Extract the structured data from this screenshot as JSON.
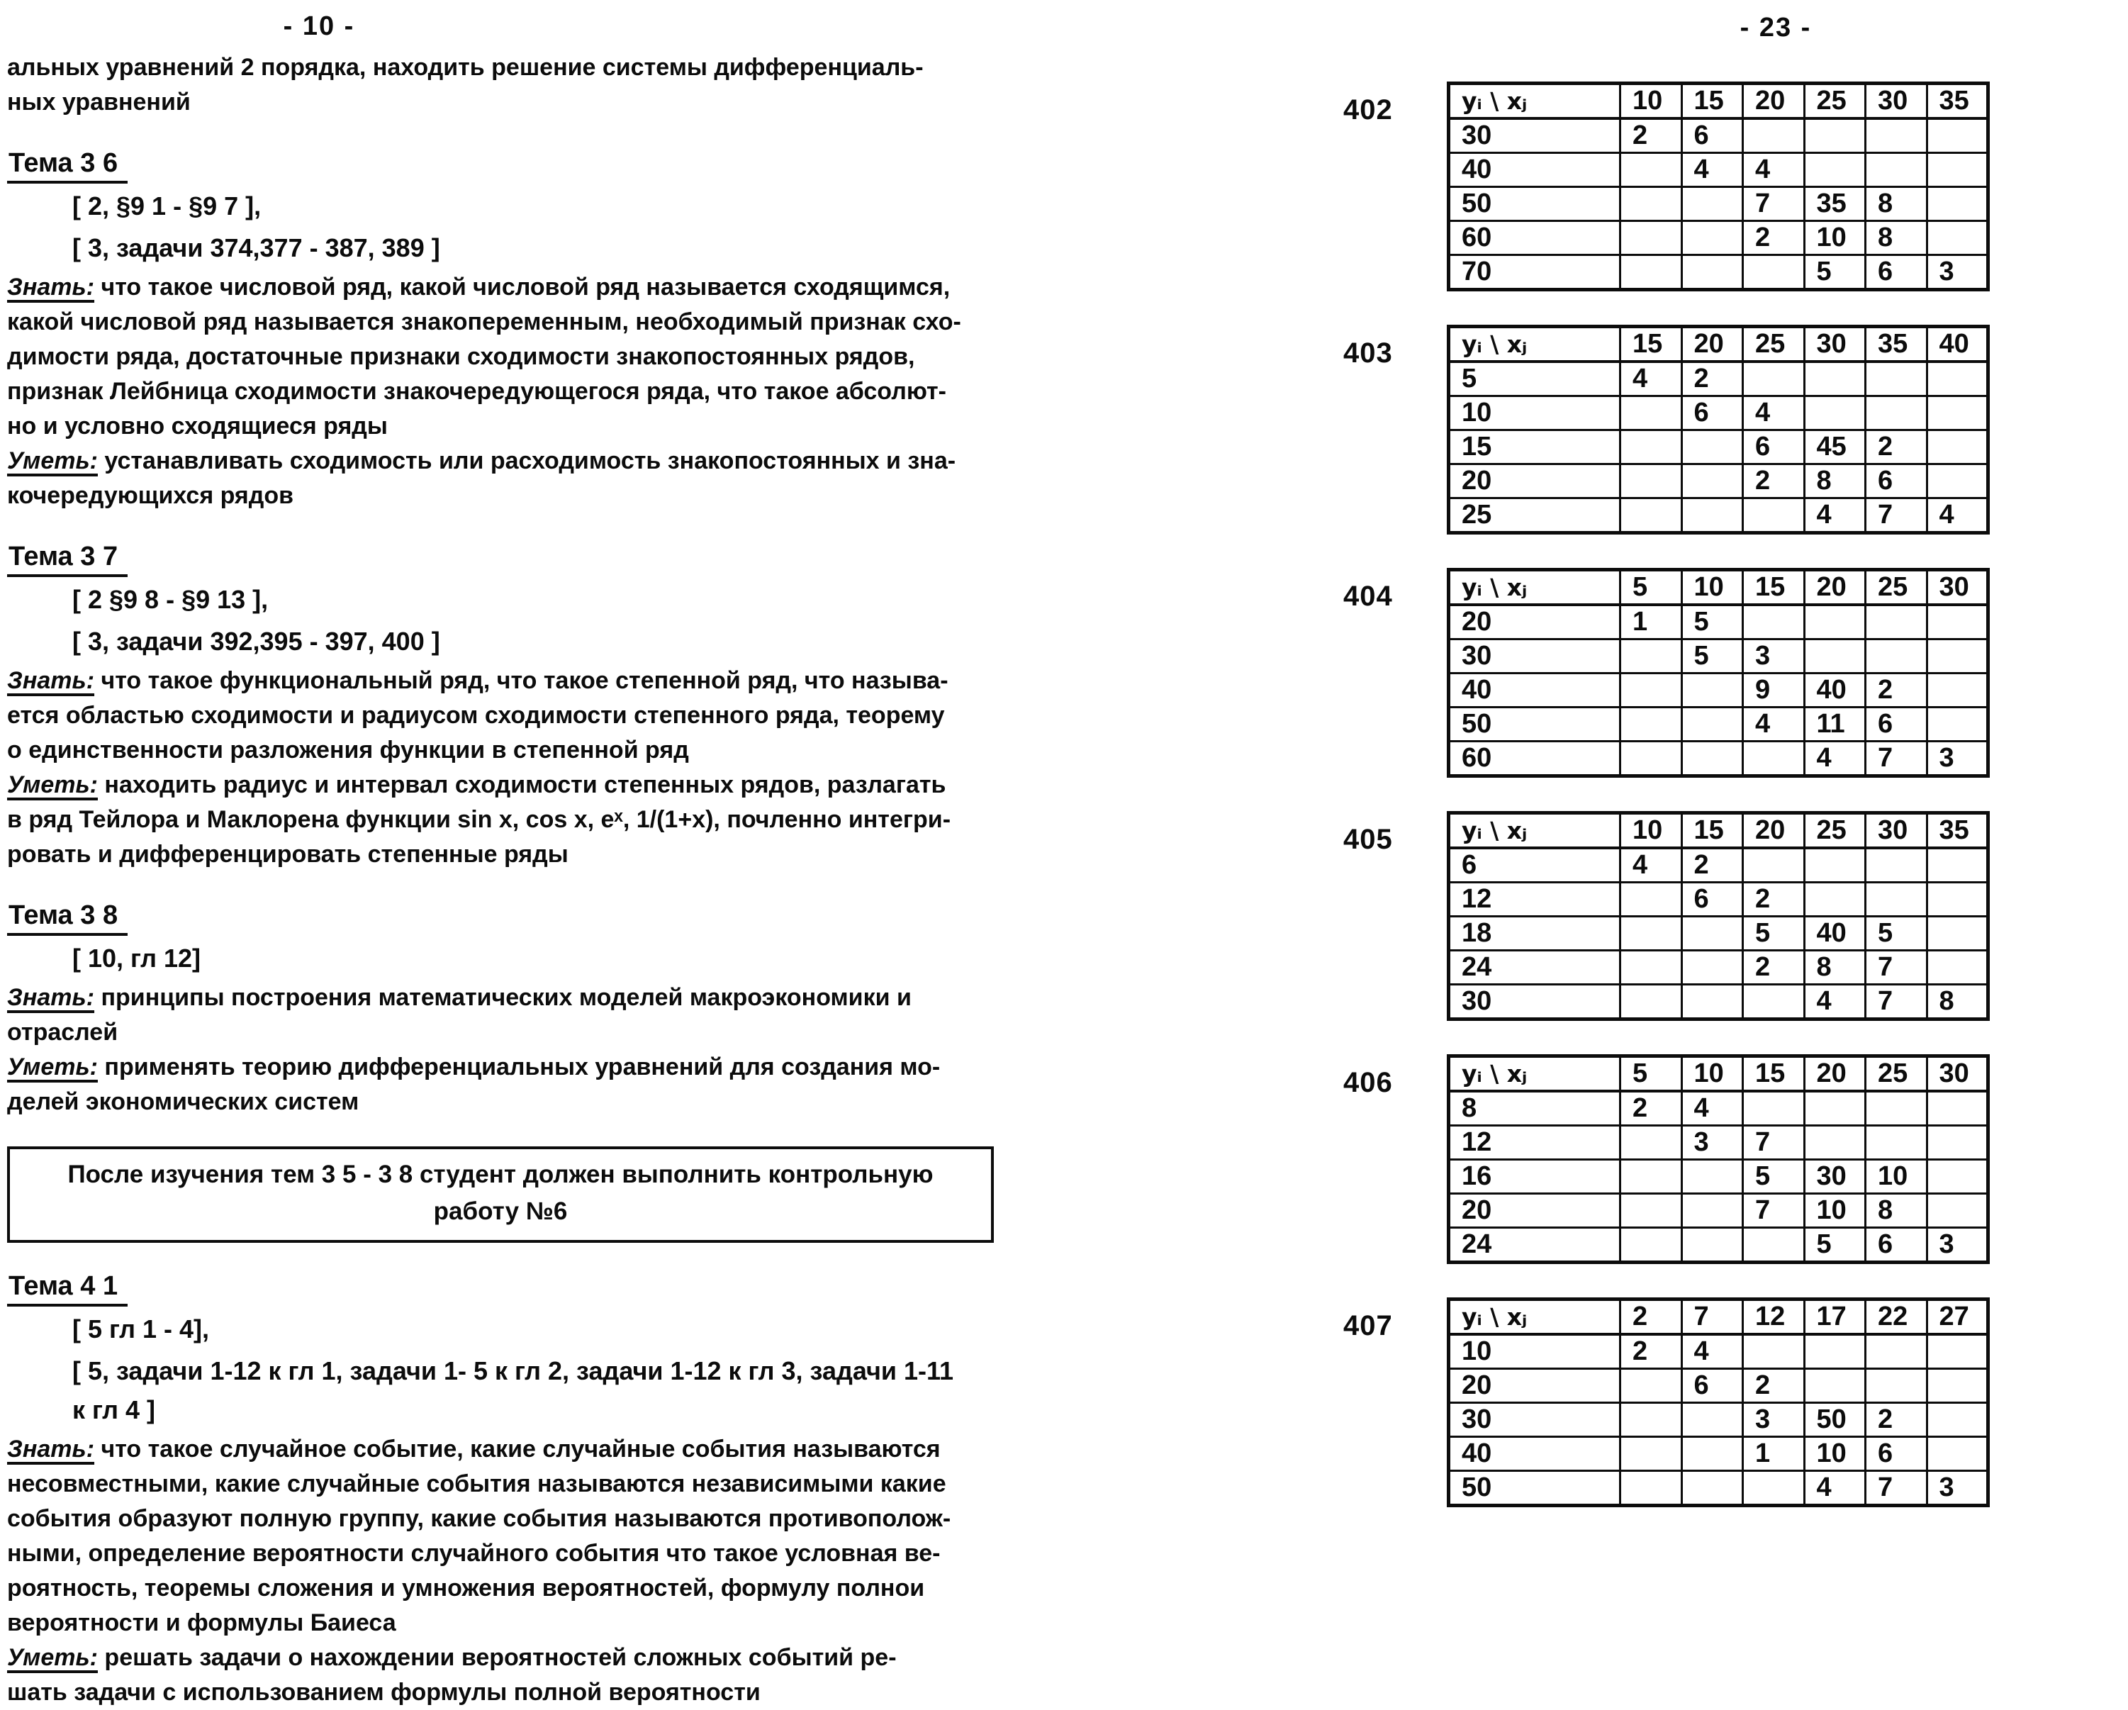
{
  "left_page": {
    "page_number": "- 10 -",
    "intro": "альных уравнений 2 порядка, находить решение системы дифференциаль-\nных уравнений",
    "sections": [
      {
        "title": "Тема 3 6",
        "refs": [
          "[ 2, §9 1 - §9 7 ],",
          "[ 3, задачи 374,377 - 387, 389 ]"
        ],
        "know_label": "Знать:",
        "know": " что такое числовой ряд, какой числовой ряд называется сходящимся,\nкакой числовой ряд называется знакопеременным, необходимый признак схо-\nдимости ряда, достаточные признаки сходимости знакопостоянных рядов,\nпризнак Лейбница сходимости знакочередующегося ряда, что такое абсолют-\nно и условно сходящиеся ряды",
        "can_label": "Уметь:",
        "can": " устанавливать сходимость или расходимость знакопостоянных и зна-\nкочередующихся рядов"
      },
      {
        "title": "Тема 3 7",
        "refs": [
          "[ 2  §9 8 - §9 13 ],",
          "[ 3, задачи 392,395 - 397, 400 ]"
        ],
        "know_label": "Знать:",
        "know": " что такое функциональный ряд, что такое степенной ряд, что называ-\nется областью сходимости и радиусом сходимости степенного ряда, теорему\nо единственности разложения функции в степенной ряд",
        "can_label": "Уметь:",
        "can": " находить радиус и интервал сходимости степенных рядов, разлагать\nв ряд Тейлора и Маклорена функции sin x, cos x, eˣ, 1/(1+x), почленно интегри-\nровать и дифференцировать степенные ряды"
      },
      {
        "title": "Тема 3 8",
        "refs": [
          "[ 10, гл  12]"
        ],
        "know_label": "Знать:",
        "know": " принципы построения математических моделей макроэкономики и\nотраслей",
        "can_label": "Уметь:",
        "can": " применять теорию дифференциальных уравнений для создания мо-\nделей экономических систем"
      },
      {
        "title": "Тема 4 1",
        "refs": [
          "[ 5  гл  1 - 4],",
          "[ 5, задачи 1-12 к гл 1, задачи 1- 5 к гл 2, задачи 1-12 к гл 3, задачи 1-11\nк гл 4 ]"
        ],
        "know_label": "Знать:",
        "know": " что такое случайное событие, какие случайные события называются\nнесовместными, какие случайные события называются независимыми  какие\nсобытия образуют полную группу, какие события называются противополож-\nными, определение вероятности случайного события  что такое условная ве-\nроятность, теоремы  сложения и умножения вероятностей, формулу полнои\nвероятности и формулы Баиеса",
        "can_label": "Уметь:",
        "can": " решать задачи о нахождении вероятностей сложных событий  ре-\nшать задачи с использованием формулы полной вероятности"
      }
    ],
    "box": "После изучения тем 3 5 - 3 8 студент должен выполнить контрольную\nработу №6"
  },
  "right_page": {
    "page_number": "- 23 -",
    "tables": [
      {
        "label": "402",
        "grid": [
          [
            "yᵢ \\ xⱼ",
            "10",
            "15",
            "20",
            "25",
            "30",
            "35"
          ],
          [
            "30",
            "2",
            "6",
            "",
            "",
            "",
            ""
          ],
          [
            "40",
            "",
            "4",
            "4",
            "",
            "",
            ""
          ],
          [
            "50",
            "",
            "",
            "7",
            "35",
            "8",
            ""
          ],
          [
            "60",
            "",
            "",
            "2",
            "10",
            "8",
            ""
          ],
          [
            "70",
            "",
            "",
            "",
            "5",
            "6",
            "3"
          ]
        ]
      },
      {
        "label": "403",
        "grid": [
          [
            "yᵢ \\ xⱼ",
            "15",
            "20",
            "25",
            "30",
            "35",
            "40"
          ],
          [
            "5",
            "4",
            "2",
            "",
            "",
            "",
            ""
          ],
          [
            "10",
            "",
            "6",
            "4",
            "",
            "",
            ""
          ],
          [
            "15",
            "",
            "",
            "6",
            "45",
            "2",
            ""
          ],
          [
            "20",
            "",
            "",
            "2",
            "8",
            "6",
            ""
          ],
          [
            "25",
            "",
            "",
            "",
            "4",
            "7",
            "4"
          ]
        ]
      },
      {
        "label": "404",
        "grid": [
          [
            "yᵢ \\ xⱼ",
            "5",
            "10",
            "15",
            "20",
            "25",
            "30"
          ],
          [
            "20",
            "1",
            "5",
            "",
            "",
            "",
            ""
          ],
          [
            "30",
            "",
            "5",
            "3",
            "",
            "",
            ""
          ],
          [
            "40",
            "",
            "",
            "9",
            "40",
            "2",
            ""
          ],
          [
            "50",
            "",
            "",
            "4",
            "11",
            "6",
            ""
          ],
          [
            "60",
            "",
            "",
            "",
            "4",
            "7",
            "3"
          ]
        ]
      },
      {
        "label": "405",
        "grid": [
          [
            "yᵢ \\ xⱼ",
            "10",
            "15",
            "20",
            "25",
            "30",
            "35"
          ],
          [
            "6",
            "4",
            "2",
            "",
            "",
            "",
            ""
          ],
          [
            "12",
            "",
            "6",
            "2",
            "",
            "",
            ""
          ],
          [
            "18",
            "",
            "",
            "5",
            "40",
            "5",
            ""
          ],
          [
            "24",
            "",
            "",
            "2",
            "8",
            "7",
            ""
          ],
          [
            "30",
            "",
            "",
            "",
            "4",
            "7",
            "8"
          ]
        ]
      },
      {
        "label": "406",
        "grid": [
          [
            "yᵢ \\ xⱼ",
            "5",
            "10",
            "15",
            "20",
            "25",
            "30"
          ],
          [
            "8",
            "2",
            "4",
            "",
            "",
            "",
            ""
          ],
          [
            "12",
            "",
            "3",
            "7",
            "",
            "",
            ""
          ],
          [
            "16",
            "",
            "",
            "5",
            "30",
            "10",
            ""
          ],
          [
            "20",
            "",
            "",
            "7",
            "10",
            "8",
            ""
          ],
          [
            "24",
            "",
            "",
            "",
            "5",
            "6",
            "3"
          ]
        ]
      },
      {
        "label": "407",
        "grid": [
          [
            "yᵢ \\ xⱼ",
            "2",
            "7",
            "12",
            "17",
            "22",
            "27"
          ],
          [
            "10",
            "2",
            "4",
            "",
            "",
            "",
            ""
          ],
          [
            "20",
            "",
            "6",
            "2",
            "",
            "",
            ""
          ],
          [
            "30",
            "",
            "",
            "3",
            "50",
            "2",
            ""
          ],
          [
            "40",
            "",
            "",
            "1",
            "10",
            "6",
            ""
          ],
          [
            "50",
            "",
            "",
            "",
            "4",
            "7",
            "3"
          ]
        ]
      }
    ]
  }
}
